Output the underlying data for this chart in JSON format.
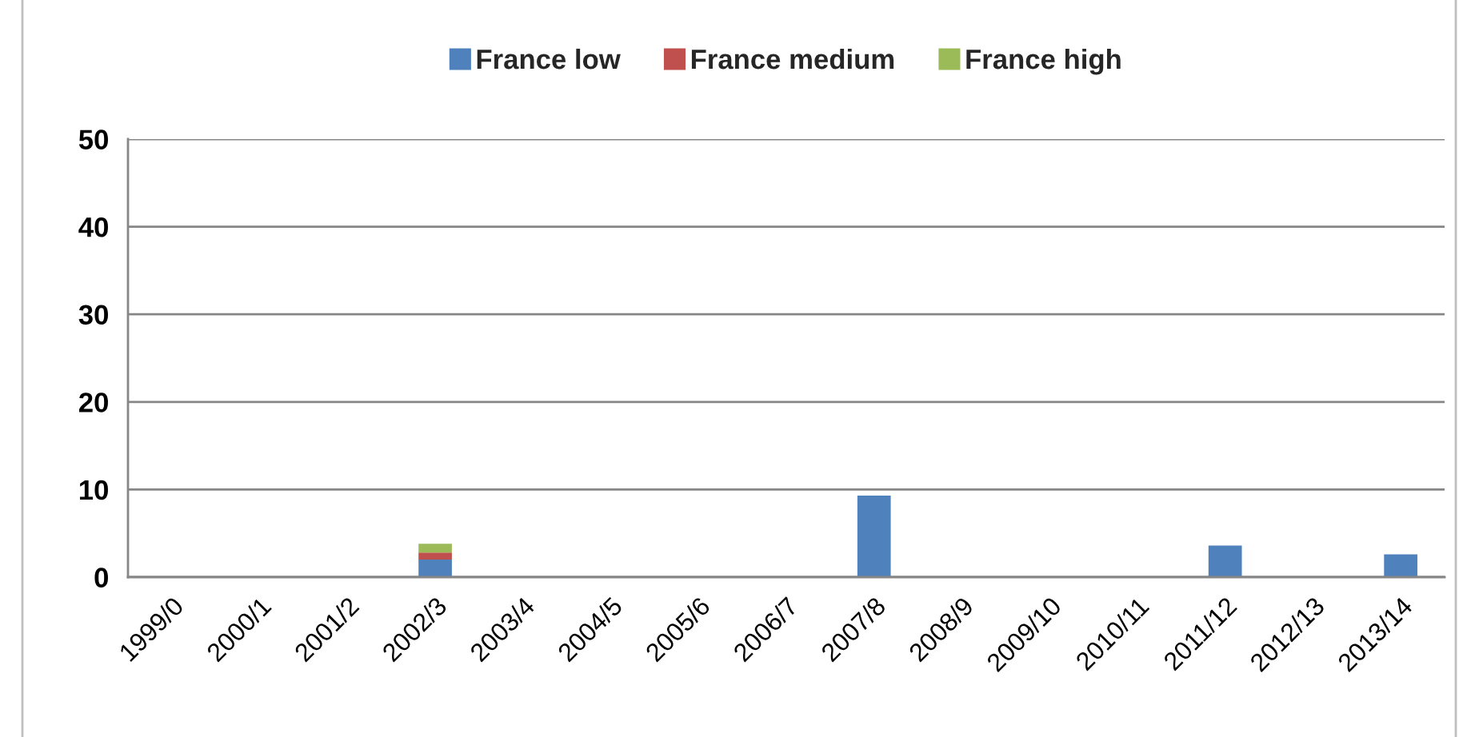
{
  "chart_data": {
    "type": "bar",
    "stacked": true,
    "categories": [
      "1999/0",
      "2000/1",
      "2001/2",
      "2002/3",
      "2003/4",
      "2004/5",
      "2005/6",
      "2006/7",
      "2007/8",
      "2008/9",
      "2009/10",
      "2010/11",
      "2011/12",
      "2012/13",
      "2013/14"
    ],
    "series": [
      {
        "name": "France low",
        "color": "#4f81bd",
        "values": [
          null,
          null,
          null,
          2,
          null,
          null,
          null,
          null,
          9.3,
          null,
          null,
          null,
          3.6,
          null,
          2.6
        ]
      },
      {
        "name": "France medium",
        "color": "#c0504d",
        "values": [
          null,
          null,
          null,
          0.8,
          null,
          null,
          null,
          null,
          null,
          null,
          null,
          null,
          null,
          null,
          null
        ]
      },
      {
        "name": "France high",
        "color": "#9bbb59",
        "values": [
          null,
          null,
          null,
          1,
          null,
          null,
          null,
          null,
          null,
          null,
          null,
          null,
          null,
          null,
          null
        ]
      }
    ],
    "ylim": [
      0,
      50
    ],
    "yticks": [
      0,
      10,
      20,
      30,
      40,
      50
    ],
    "grid": "y",
    "legend": "top"
  }
}
